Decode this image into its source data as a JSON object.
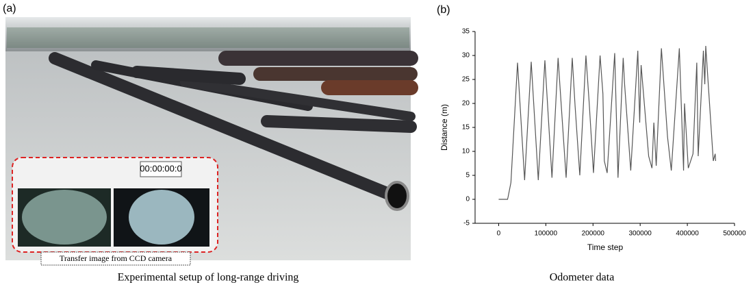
{
  "panel_a": {
    "label": "(a)",
    "timer": "00:00:00:0",
    "inset_caption": "Transfer image from CCD camera",
    "caption": "Experimental setup of long-range driving"
  },
  "chart_data": {
    "type": "line",
    "panel_label": "(b)",
    "caption": "Odometer data",
    "xlabel": "Time step",
    "ylabel": "Distance (m)",
    "color": "#555555",
    "x": [
      0,
      18800,
      20000,
      26000,
      40000,
      55000,
      69000,
      84000,
      98000,
      113000,
      126000,
      129000,
      143000,
      156000,
      162000,
      172000,
      185000,
      192000,
      201000,
      215000,
      221000,
      224000,
      230000,
      246000,
      253000,
      264000,
      267000,
      280000,
      295000,
      299000,
      302000,
      318000,
      325000,
      329000,
      334000,
      345000,
      358000,
      366000,
      383000,
      392000,
      394000,
      402000,
      412000,
      420000,
      423000,
      434000,
      437000,
      439000,
      455000,
      459000,
      460000
    ],
    "values": [
      0,
      0,
      0.5,
      3.5,
      28.5,
      4,
      28.7,
      4,
      29,
      4.5,
      29.5,
      25,
      4.5,
      29.5,
      19.5,
      5,
      30,
      20,
      5.5,
      30,
      22,
      8,
      5.5,
      30.5,
      4.5,
      29.5,
      24,
      6,
      31,
      16,
      28,
      9,
      6.5,
      16,
      7,
      31.5,
      13,
      6,
      31.5,
      6,
      20,
      6.5,
      9.5,
      28.5,
      9,
      31,
      24,
      32,
      8,
      9.5,
      8
    ],
    "xlim": [
      -50000,
      500000
    ],
    "ylim": [
      -5,
      35
    ],
    "xticks": [
      0,
      100000,
      200000,
      300000,
      400000,
      500000
    ],
    "yticks": [
      -5,
      0,
      5,
      10,
      15,
      20,
      25,
      30,
      35
    ]
  }
}
